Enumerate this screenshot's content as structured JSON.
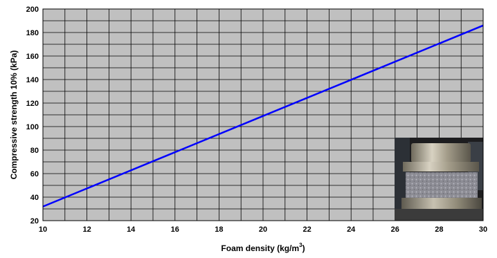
{
  "chart_data": {
    "type": "line",
    "xlabel": "Foam density (kg/m3)",
    "xlabel_parts": {
      "main": "Foam density (kg/m",
      "sup": "3",
      "end": ")"
    },
    "ylabel": "Compressive strength 10% (kPa)",
    "xlim": [
      10,
      30
    ],
    "ylim": [
      20,
      200
    ],
    "x_ticks": [
      10,
      12,
      14,
      16,
      18,
      20,
      22,
      24,
      26,
      28,
      30
    ],
    "y_ticks": [
      20,
      40,
      60,
      80,
      100,
      120,
      140,
      160,
      180,
      200
    ],
    "x_minor_step": 1,
    "y_minor_step": 10,
    "grid": true,
    "background_color": "#c0c0c0",
    "grid_color": "#000000",
    "series": [
      {
        "color": "#0000ff",
        "x": [
          10,
          30
        ],
        "y": [
          32,
          186
        ]
      }
    ]
  },
  "inset_photo": {
    "icon": "compression-test-machine-photo"
  }
}
